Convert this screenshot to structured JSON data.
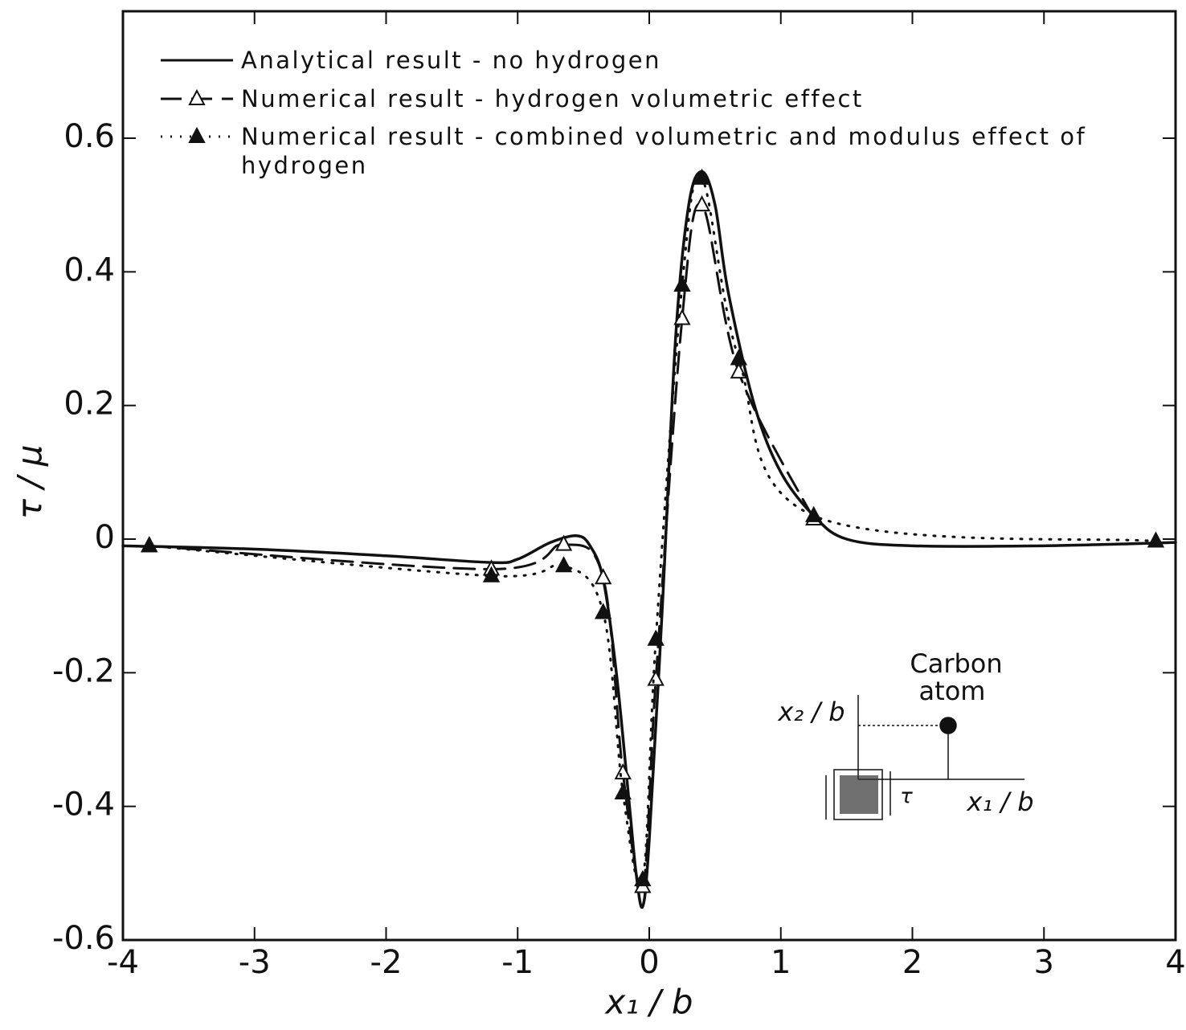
{
  "chart_data": {
    "type": "line",
    "xlabel": "x₁ / b",
    "ylabel": "τ / μ",
    "xlim": [
      -4,
      4
    ],
    "xticks": [
      -4,
      -3,
      -2,
      -1,
      0,
      1,
      2,
      3,
      4
    ],
    "ylim": [
      -0.6,
      0.79
    ],
    "yticks": [
      -0.6,
      -0.4,
      -0.2,
      0,
      0.2,
      0.4,
      0.6
    ],
    "legend": "upper left",
    "series": [
      {
        "name": "Analytical result - no hydrogen",
        "color": "#111111",
        "dash": "solid",
        "marker": "none",
        "x": [
          -4,
          -3,
          -2,
          -1.2,
          -1,
          -0.75,
          -0.55,
          -0.45,
          -0.35,
          -0.25,
          -0.15,
          -0.1,
          -0.05,
          0,
          0.1,
          0.2,
          0.3,
          0.4,
          0.5,
          0.6,
          0.8,
          1.0,
          1.25,
          1.5,
          2,
          3,
          4
        ],
        "values": [
          -0.01,
          -0.015,
          -0.025,
          -0.035,
          -0.03,
          -0.005,
          0.005,
          -0.01,
          -0.06,
          -0.2,
          -0.4,
          -0.5,
          -0.55,
          -0.45,
          -0.1,
          0.3,
          0.5,
          0.55,
          0.5,
          0.37,
          0.2,
          0.1,
          0.035,
          0.0,
          -0.01,
          -0.01,
          -0.005
        ]
      },
      {
        "name": "Numerical result - hydrogen volumetric effect",
        "color": "#111111",
        "dash": "dashed",
        "marker": "open-triangle",
        "x": [
          -3.8,
          -1.2,
          -0.65,
          -0.35,
          -0.2,
          -0.05,
          0.05,
          0.25,
          0.4,
          0.68,
          1.25
        ],
        "values": [
          -0.01,
          -0.045,
          -0.008,
          -0.058,
          -0.35,
          -0.52,
          -0.21,
          0.33,
          0.5,
          0.25,
          0.03
        ]
      },
      {
        "name": "Numerical result - combined volumetric and modulus effect of hydrogen",
        "color": "#111111",
        "dash": "dotted",
        "marker": "filled-triangle",
        "x": [
          -3.8,
          -1.2,
          -0.65,
          -0.35,
          -0.2,
          -0.05,
          0.05,
          0.25,
          0.4,
          0.68,
          1.25,
          3.85
        ],
        "values": [
          -0.01,
          -0.055,
          -0.04,
          -0.11,
          -0.38,
          -0.51,
          -0.15,
          0.38,
          0.54,
          0.27,
          0.035,
          -0.003
        ]
      }
    ],
    "annotations": [
      "Carbon",
      "atom",
      "x₂ / b",
      "x₁ / b",
      "τ"
    ]
  }
}
